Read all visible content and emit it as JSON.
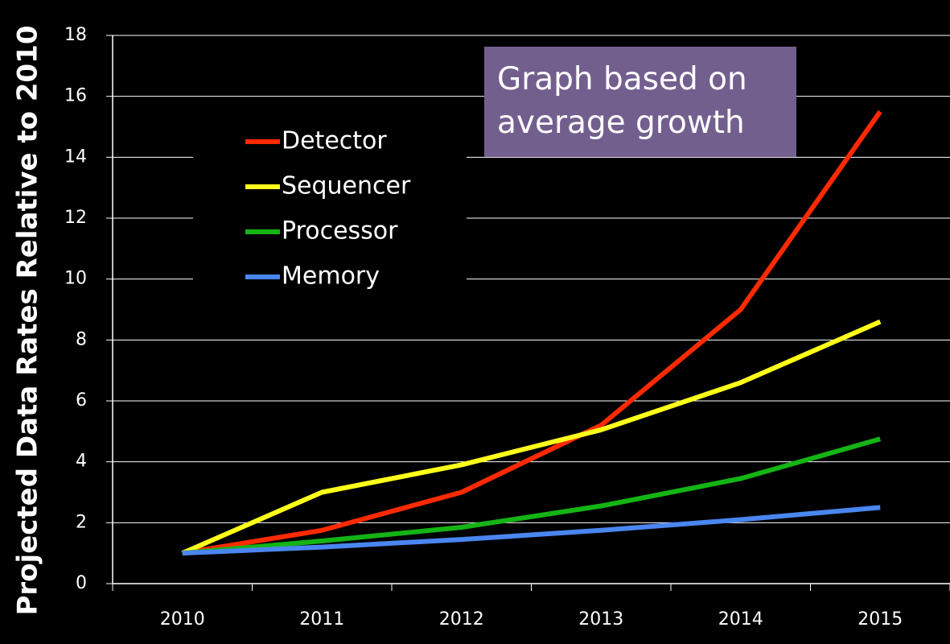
{
  "chart_data": {
    "type": "line",
    "ylabel": "Projected Data Rates Relative to 2010",
    "annotation": "Graph based on average growth",
    "categories": [
      "2010",
      "2011",
      "2012",
      "2013",
      "2014",
      "2015"
    ],
    "series": [
      {
        "name": "Detector",
        "color": "#ff2a00",
        "values": [
          1,
          1.75,
          3,
          5.2,
          9,
          15.5
        ]
      },
      {
        "name": "Sequencer",
        "color": "#ffff1a",
        "values": [
          1,
          3,
          3.9,
          5.05,
          6.6,
          8.6
        ]
      },
      {
        "name": "Processor",
        "color": "#14b414",
        "values": [
          1,
          1.4,
          1.85,
          2.55,
          3.45,
          4.75
        ]
      },
      {
        "name": "Memory",
        "color": "#4a86f0",
        "values": [
          1,
          1.2,
          1.45,
          1.75,
          2.1,
          2.5
        ]
      }
    ],
    "ylim": [
      0,
      18
    ],
    "yticks": [
      0,
      2,
      4,
      6,
      8,
      10,
      12,
      14,
      16,
      18
    ],
    "grid": true,
    "legend": "upper-left"
  }
}
